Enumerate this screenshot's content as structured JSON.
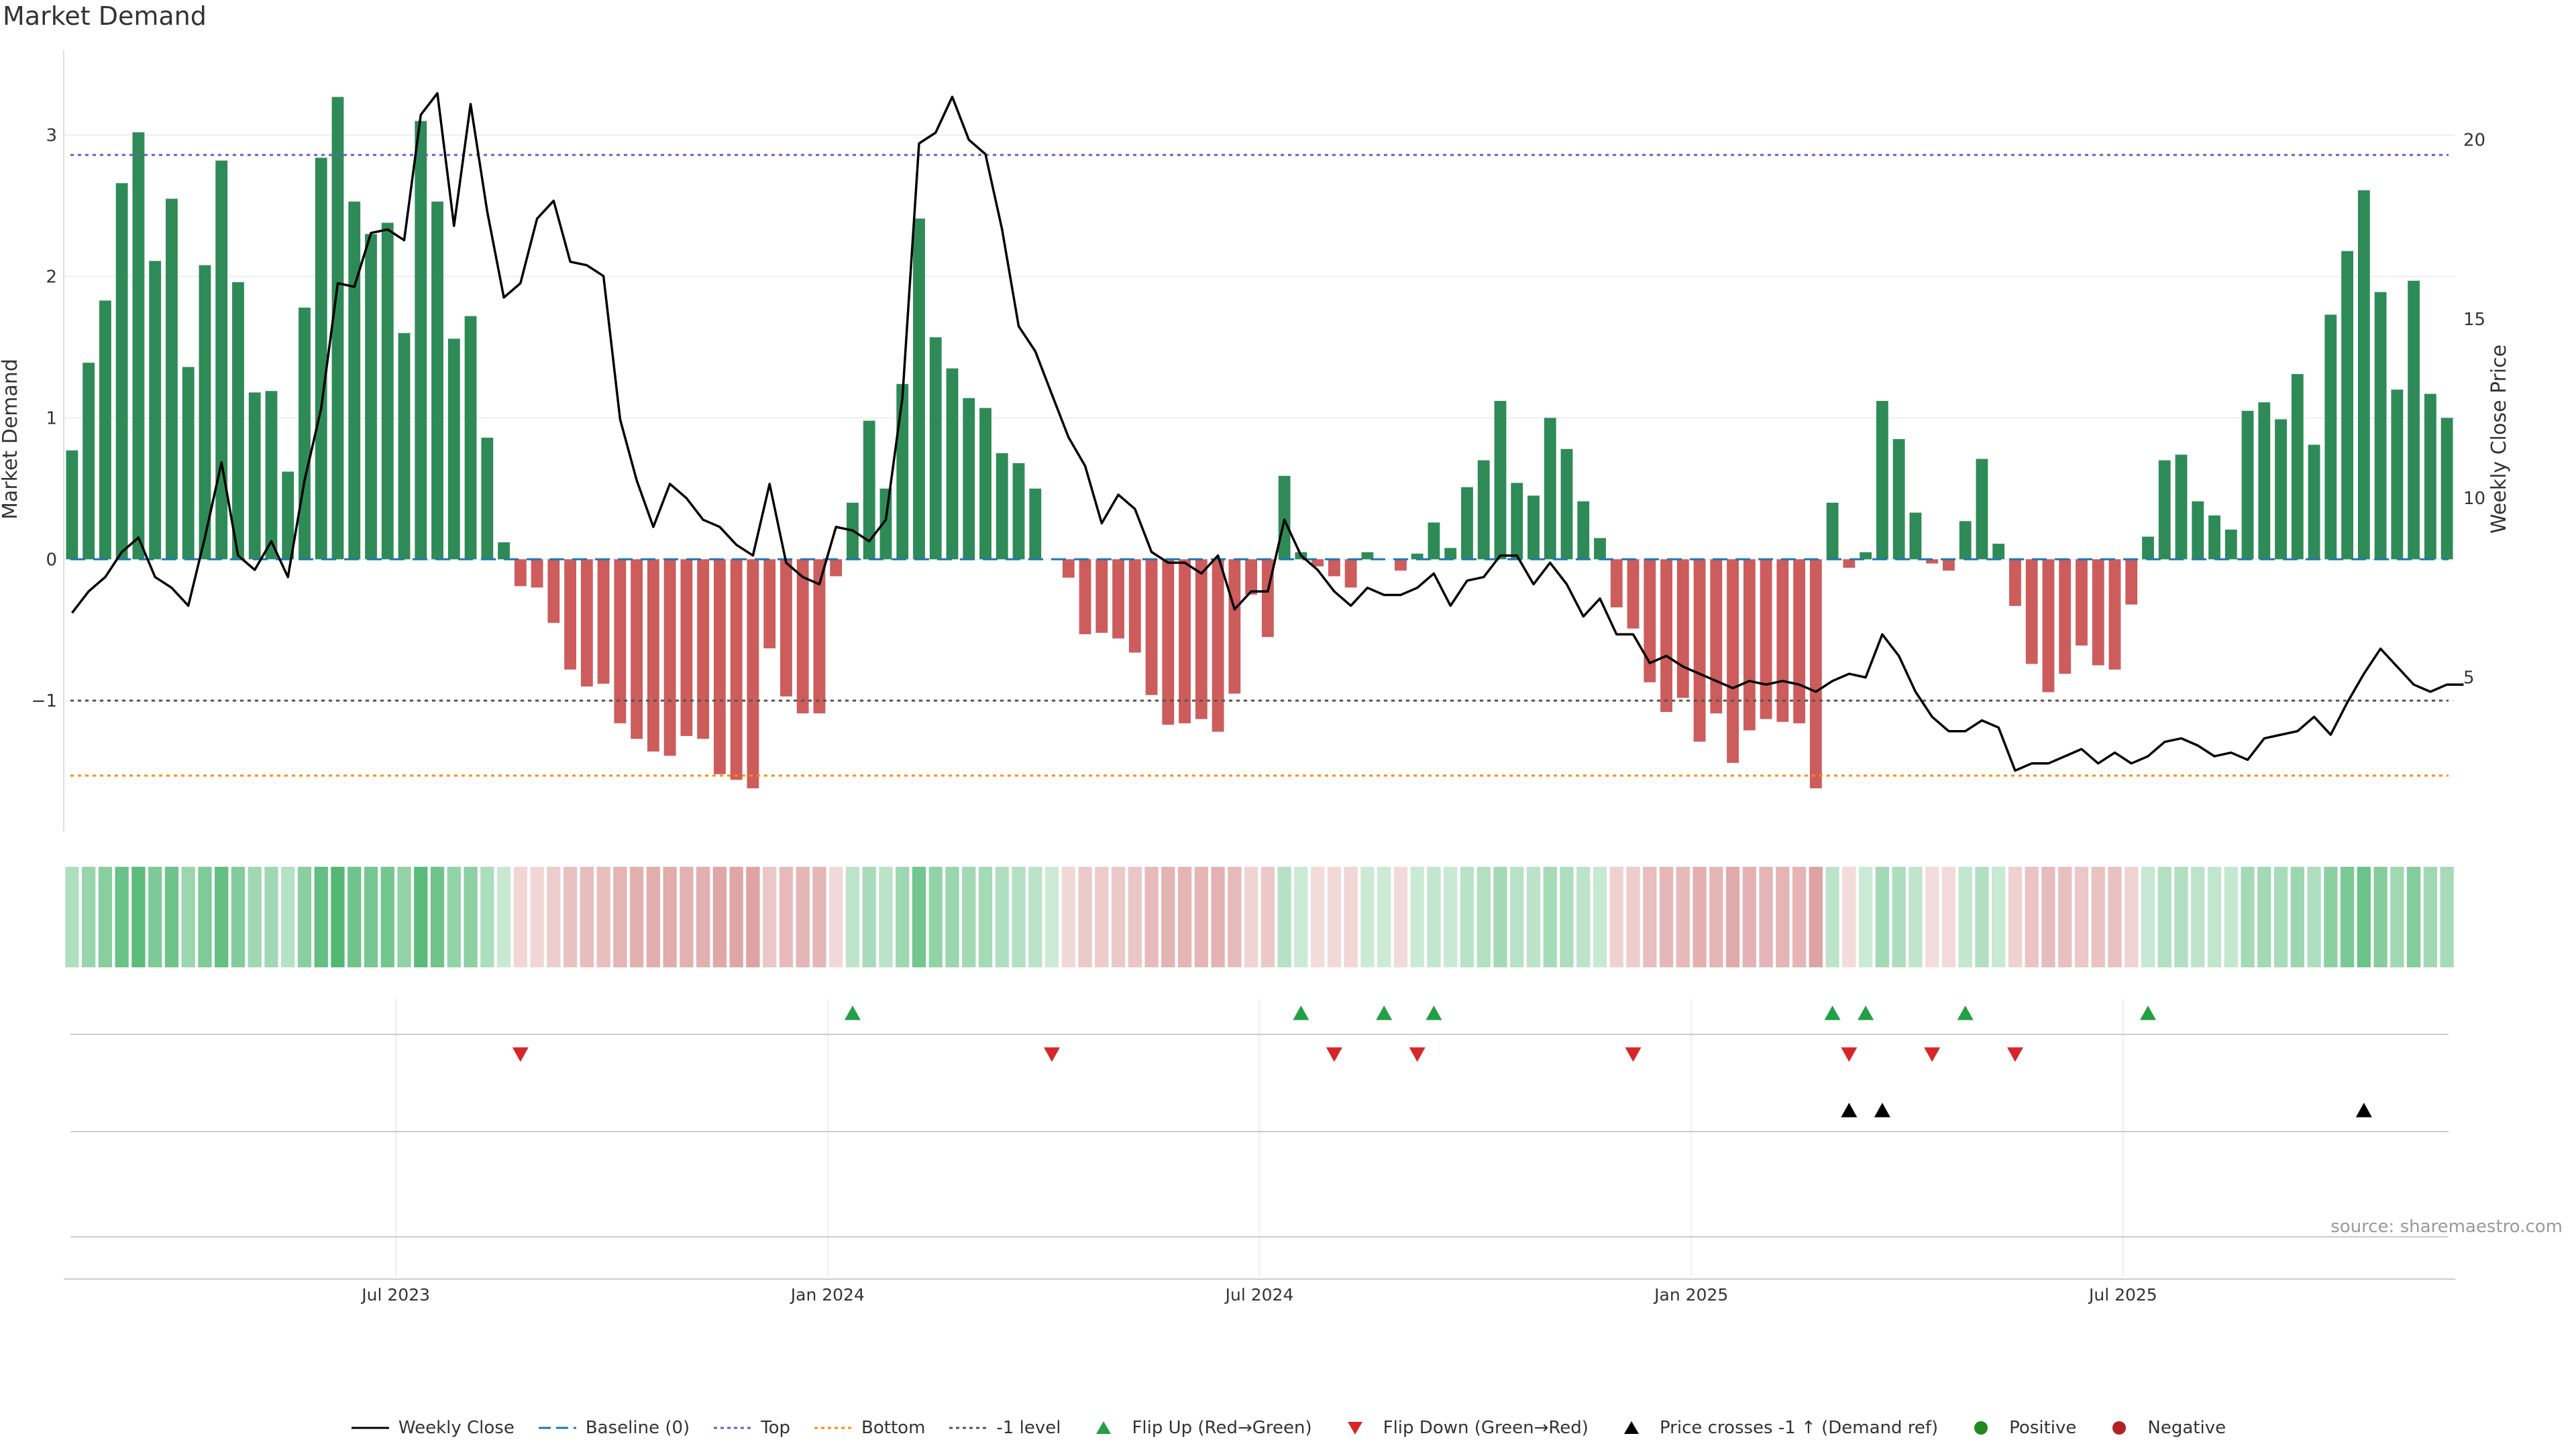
{
  "title": "Market Demand",
  "source": "source: sharemaestro.com",
  "colors": {
    "positive": "#2e8b57",
    "negative": "#cd5c5c",
    "price": "#000000",
    "baseline": "#1f77b4",
    "top": "#6a5acd",
    "bottom": "#ff8c00",
    "minus_one": "#555555",
    "flip_up": "#22a045",
    "flip_down": "#d62728",
    "cross": "#000000",
    "positive_dot": "#1e8a1e",
    "negative_dot": "#b22222"
  },
  "chart_data": {
    "type": "bar",
    "title": "Market Demand",
    "ylabel": "Market Demand",
    "y2label": "Weekly Close Price",
    "ylim": [
      -1.9,
      3.6
    ],
    "y2lim": [
      0.8,
      22.5
    ],
    "yticks": [
      3,
      2,
      1,
      0,
      -1
    ],
    "ytick_labels": [
      "3",
      "2",
      "1",
      "0",
      "−1"
    ],
    "y2ticks": [
      20,
      15,
      10,
      5
    ],
    "y2tick_labels": [
      "20",
      "15",
      "10",
      "5"
    ],
    "x_ticks": [
      {
        "label": "Jul 2023",
        "week": 20
      },
      {
        "label": "Jan 2024",
        "week": 46
      },
      {
        "label": "Jul 2024",
        "week": 72
      },
      {
        "label": "Jan 2025",
        "week": 98
      },
      {
        "label": "Jul 2025",
        "week": 124
      }
    ],
    "reference_lines": {
      "top": 2.86,
      "bottom": -1.53,
      "minus_one": -1.0,
      "baseline": 0
    },
    "demand": [
      0.77,
      1.39,
      1.83,
      2.66,
      3.02,
      2.11,
      2.55,
      1.36,
      2.08,
      2.82,
      1.96,
      1.18,
      1.19,
      0.62,
      1.78,
      2.84,
      3.27,
      2.53,
      2.3,
      2.38,
      1.6,
      3.1,
      2.53,
      1.56,
      1.72,
      0.86,
      0.12,
      -0.19,
      -0.2,
      -0.45,
      -0.78,
      -0.9,
      -0.88,
      -1.16,
      -1.27,
      -1.36,
      -1.39,
      -1.25,
      -1.27,
      -1.52,
      -1.56,
      -1.62,
      -0.63,
      -0.97,
      -1.09,
      -1.09,
      -0.12,
      0.4,
      0.98,
      0.5,
      1.24,
      2.41,
      1.57,
      1.35,
      1.14,
      1.07,
      0.75,
      0.68,
      0.5,
      0,
      -0.13,
      -0.53,
      -0.52,
      -0.56,
      -0.66,
      -0.96,
      -1.17,
      -1.16,
      -1.13,
      -1.22,
      -0.95,
      -0.25,
      -0.55,
      0.59,
      0.05,
      -0.05,
      -0.12,
      -0.2,
      0.05,
      0,
      -0.08,
      0.04,
      0.26,
      0.08,
      0.51,
      0.7,
      1.12,
      0.54,
      0.45,
      1.0,
      0.78,
      0.41,
      0.15,
      -0.34,
      -0.49,
      -0.87,
      -1.08,
      -0.98,
      -1.29,
      -1.09,
      -1.44,
      -1.21,
      -1.13,
      -1.15,
      -1.16,
      -1.62,
      0.4,
      -0.06,
      0.05,
      1.12,
      0.85,
      0.33,
      -0.03,
      -0.08,
      0.27,
      0.71,
      0.11,
      -0.33,
      -0.74,
      -0.94,
      -0.81,
      -0.61,
      -0.75,
      -0.78,
      -0.32,
      0.16,
      0.7,
      0.74,
      0.41,
      0.31,
      0.21,
      1.05,
      1.11,
      0.99,
      1.31,
      0.81,
      1.73,
      2.18,
      2.61,
      1.89,
      1.2,
      1.97,
      1.17,
      1.0
    ],
    "price": [
      6.8,
      7.4,
      7.8,
      8.5,
      8.9,
      7.8,
      7.5,
      7.0,
      8.9,
      11.0,
      8.4,
      8.0,
      8.8,
      7.8,
      10.5,
      12.5,
      16.0,
      15.9,
      17.4,
      17.5,
      17.2,
      20.7,
      21.3,
      17.6,
      21.0,
      18.0,
      15.6,
      16.0,
      17.8,
      18.3,
      16.6,
      16.5,
      16.2,
      12.2,
      10.5,
      9.2,
      10.4,
      10.0,
      9.4,
      9.2,
      8.7,
      8.4,
      10.4,
      8.2,
      7.8,
      7.6,
      9.2,
      9.1,
      8.8,
      9.4,
      12.8,
      19.9,
      20.2,
      21.2,
      20.0,
      19.6,
      17.5,
      14.8,
      14.1,
      12.9,
      11.7,
      10.9,
      9.3,
      10.1,
      9.7,
      8.5,
      8.2,
      8.2,
      7.9,
      8.4,
      6.9,
      7.4,
      7.4,
      9.4,
      8.4,
      8.0,
      7.4,
      7.0,
      7.5,
      7.3,
      7.3,
      7.5,
      7.9,
      7.0,
      7.7,
      7.8,
      8.4,
      8.4,
      7.6,
      8.2,
      7.6,
      6.7,
      7.2,
      6.2,
      6.2,
      5.4,
      5.6,
      5.3,
      5.1,
      4.9,
      4.7,
      4.9,
      4.8,
      4.9,
      4.8,
      4.6,
      4.9,
      5.1,
      5.0,
      6.2,
      5.6,
      4.6,
      3.9,
      3.5,
      3.5,
      3.8,
      3.6,
      2.4,
      2.6,
      2.6,
      2.8,
      3.0,
      2.6,
      2.9,
      2.6,
      2.8,
      3.2,
      3.3,
      3.1,
      2.8,
      2.9,
      2.7,
      3.3,
      3.4,
      3.5,
      3.9,
      3.4,
      4.3,
      5.1,
      5.8,
      5.3,
      4.8,
      4.6,
      4.8,
      4.8
    ],
    "flip_up_weeks": [
      47,
      74,
      79,
      82,
      106,
      108,
      114,
      125
    ],
    "flip_down_weeks": [
      27,
      59,
      76,
      81,
      94,
      107,
      112,
      117
    ],
    "price_cross_weeks": [
      107,
      109,
      138
    ],
    "legend": [
      {
        "key": "line",
        "label": "Weekly Close"
      },
      {
        "key": "baseline",
        "label": "Baseline (0)"
      },
      {
        "key": "top",
        "label": "Top"
      },
      {
        "key": "bottom",
        "label": "Bottom"
      },
      {
        "key": "minus_one",
        "label": "-1 level"
      },
      {
        "key": "flip_up",
        "label": "Flip Up (Red→Green)"
      },
      {
        "key": "flip_down",
        "label": "Flip Down (Green→Red)"
      },
      {
        "key": "cross",
        "label": "Price crosses -1 ↑ (Demand ref)"
      },
      {
        "key": "positive",
        "label": "Positive"
      },
      {
        "key": "negative",
        "label": "Negative"
      }
    ]
  }
}
